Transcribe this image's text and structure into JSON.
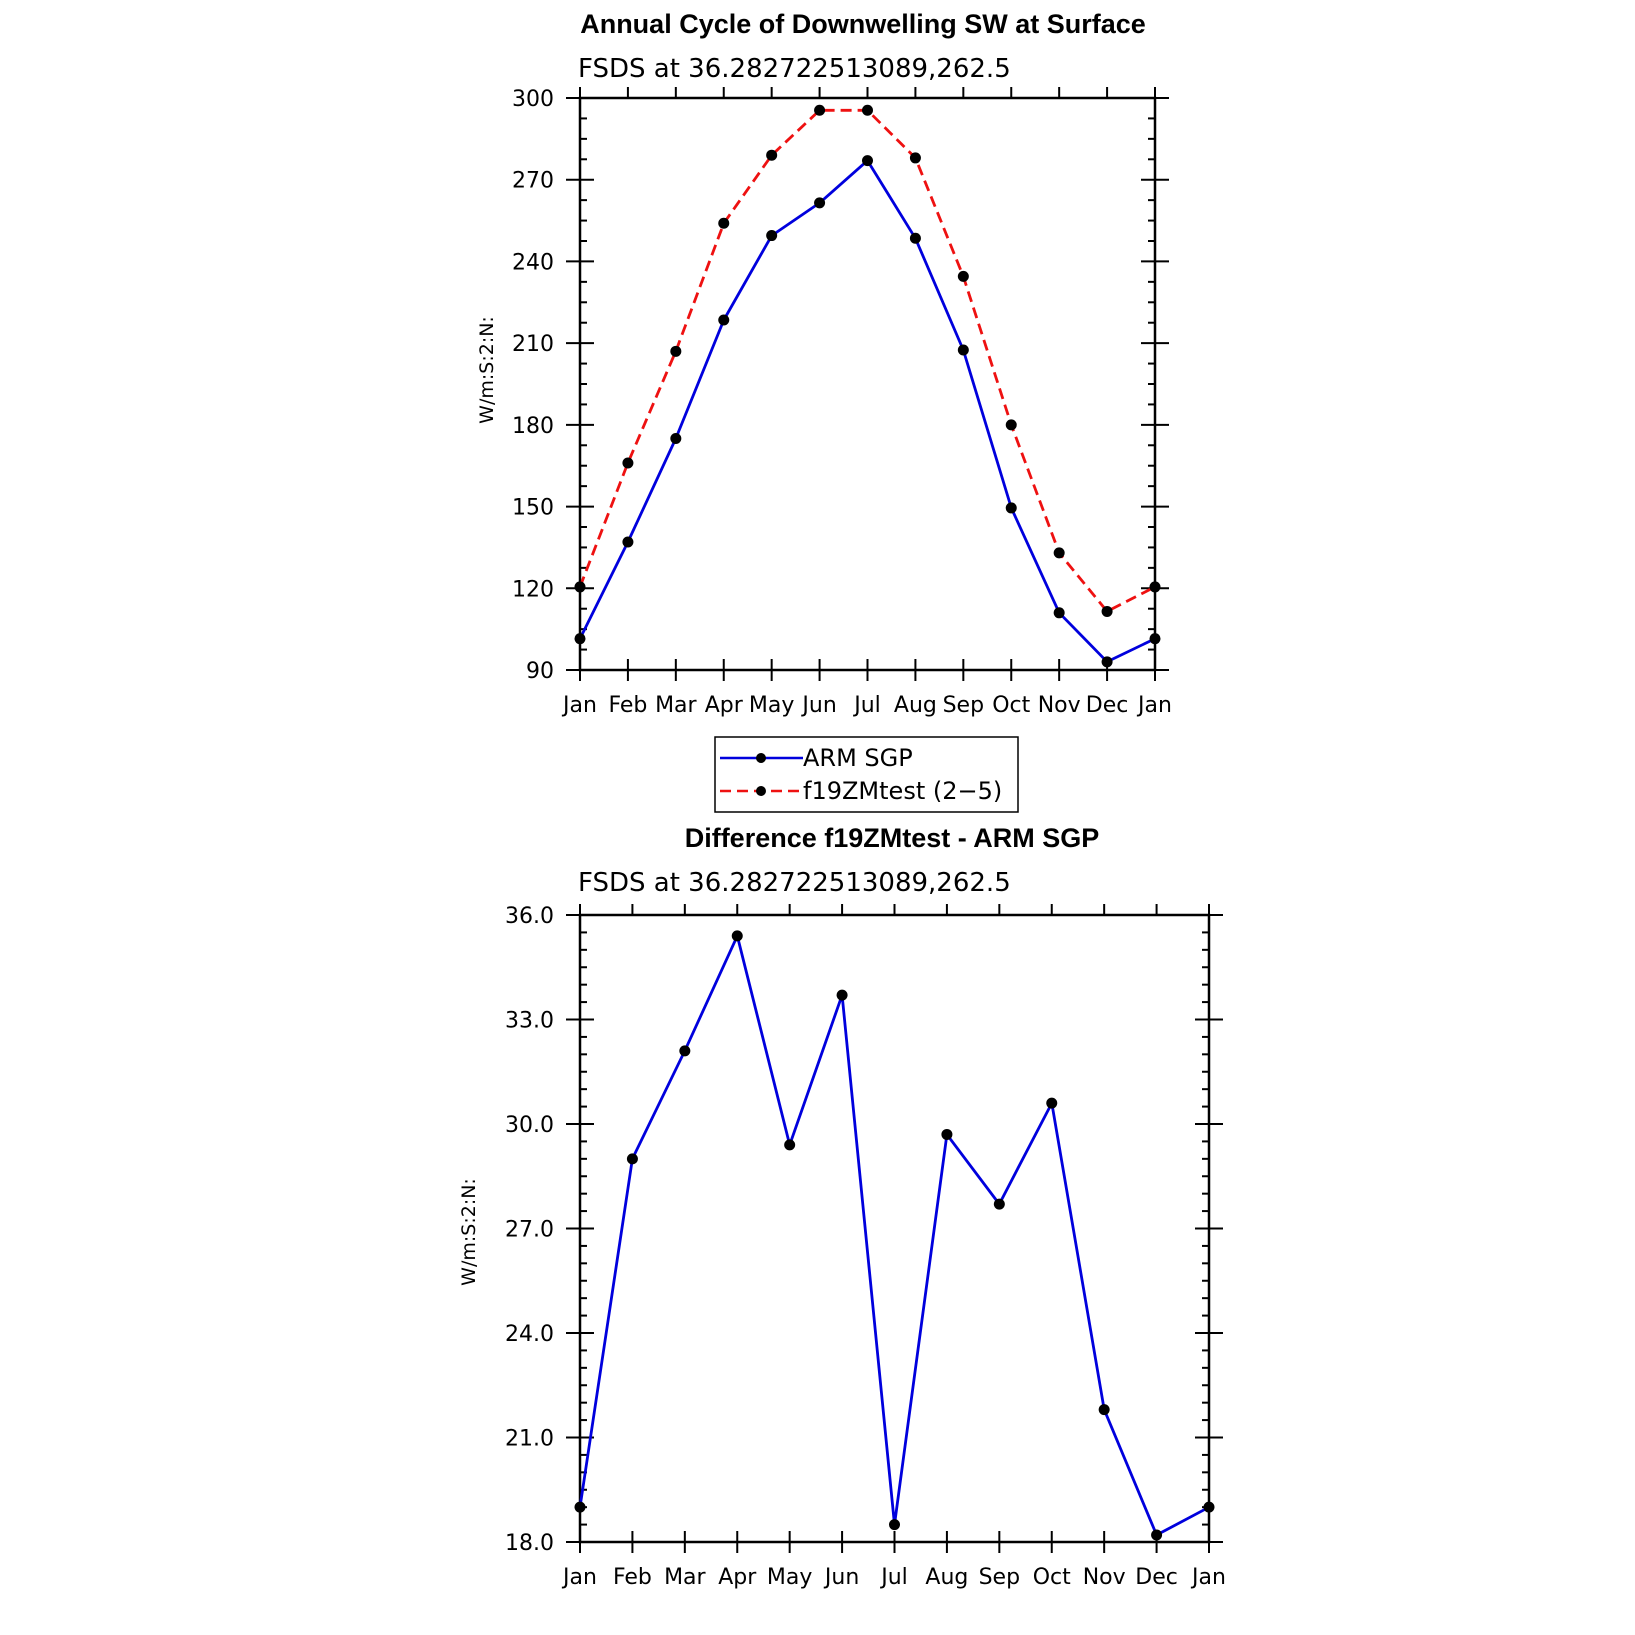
{
  "chart_data": [
    {
      "type": "line",
      "title": "Annual Cycle of Downwelling SW at Surface",
      "subtitle": "FSDS at 36.282722513089,262.5",
      "ylabel": "W/m:S:2:N:",
      "categories": [
        "Jan",
        "Feb",
        "Mar",
        "Apr",
        "May",
        "Jun",
        "Jul",
        "Aug",
        "Sep",
        "Oct",
        "Nov",
        "Dec",
        "Jan"
      ],
      "ylim": [
        90,
        300
      ],
      "yticks": [
        "90",
        "120",
        "150",
        "180",
        "210",
        "240",
        "270",
        "300"
      ],
      "legend_position": "bottom",
      "series": [
        {
          "name": "ARM SGP",
          "color": "#0000dd",
          "dash": "solid",
          "values": [
            101.5,
            137,
            175,
            218.5,
            249.5,
            261.5,
            277,
            248.5,
            207.5,
            149.5,
            111,
            93,
            101.5
          ]
        },
        {
          "name": "f19ZMtest (2−5)",
          "color": "#ee1111",
          "dash": "dashed",
          "values": [
            120.5,
            166,
            207,
            254,
            279,
            295.5,
            295.5,
            278,
            234.5,
            180,
            133,
            111.5,
            120.5
          ]
        }
      ]
    },
    {
      "type": "line",
      "title": "Difference f19ZMtest - ARM SGP",
      "subtitle": "FSDS at 36.282722513089,262.5",
      "ylabel": "W/m:S:2:N:",
      "categories": [
        "Jan",
        "Feb",
        "Mar",
        "Apr",
        "May",
        "Jun",
        "Jul",
        "Aug",
        "Sep",
        "Oct",
        "Nov",
        "Dec",
        "Jan"
      ],
      "ylim": [
        18,
        36
      ],
      "yticks": [
        "18.0",
        "21.0",
        "24.0",
        "27.0",
        "30.0",
        "33.0",
        "36.0"
      ],
      "series": [
        {
          "color": "#0000dd",
          "dash": "solid",
          "values": [
            19.0,
            29.0,
            32.1,
            35.4,
            29.4,
            33.7,
            18.5,
            29.7,
            27.7,
            30.6,
            21.8,
            18.2,
            19.0
          ]
        }
      ]
    }
  ]
}
